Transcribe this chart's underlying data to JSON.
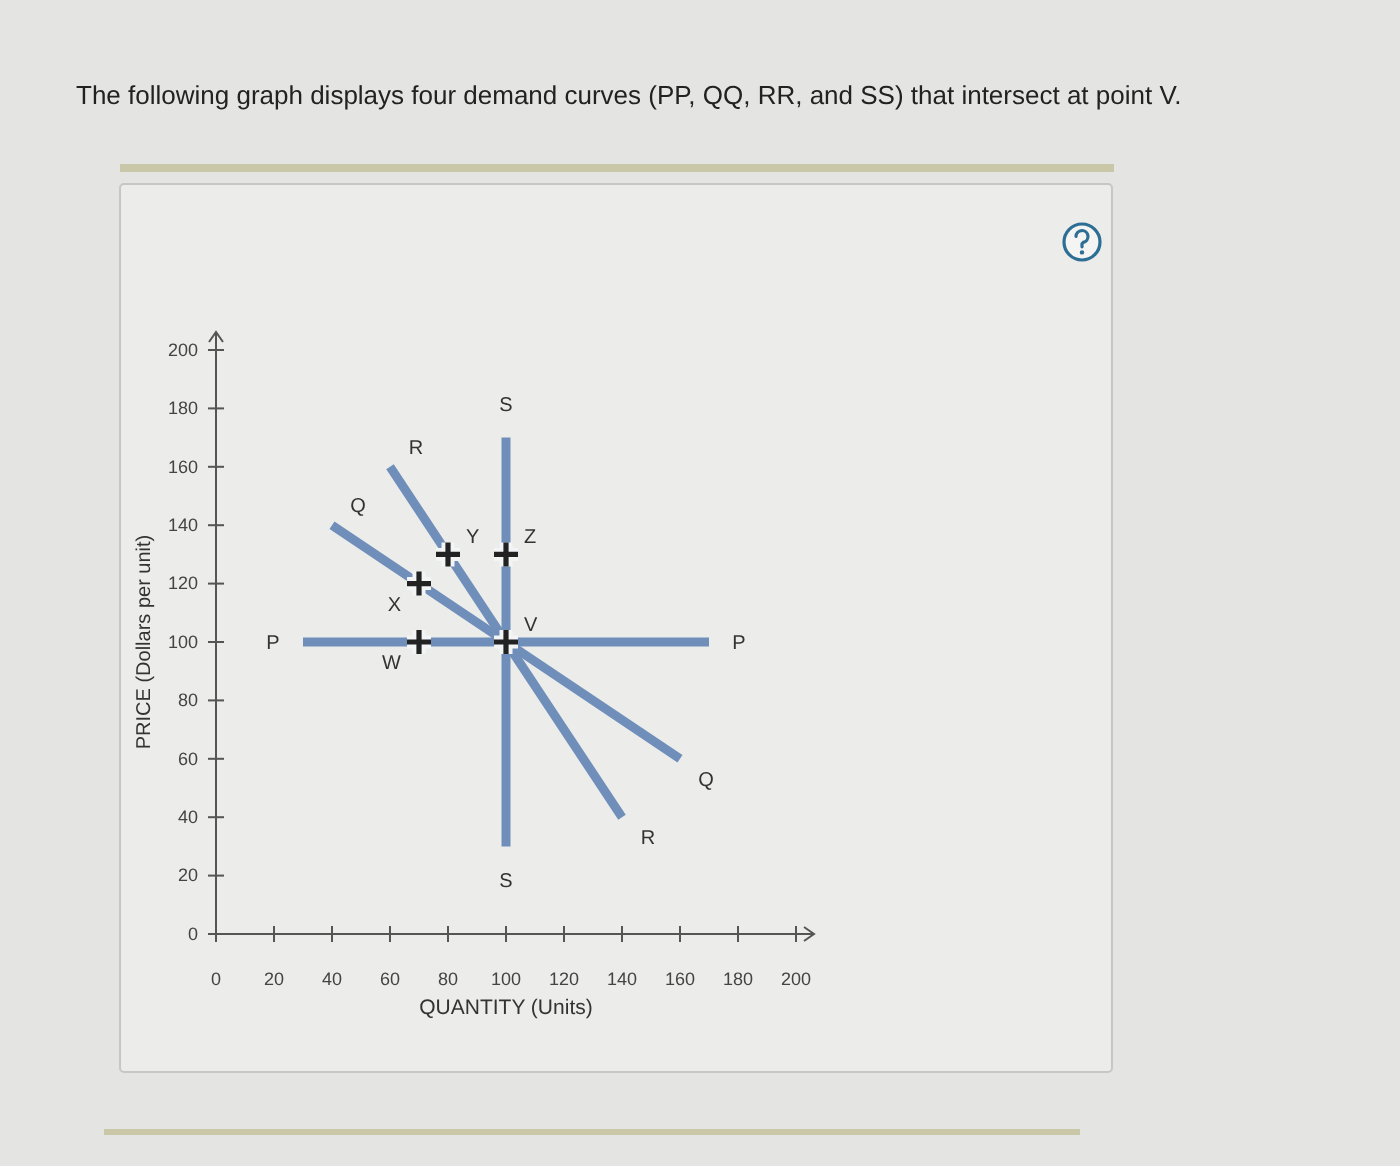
{
  "chart_data": {
    "type": "line",
    "title": "The following graph displays four demand curves (PP, QQ, RR, and SS) that intersect at point V.",
    "xlabel": "QUANTITY (Units)",
    "ylabel": "PRICE (Dollars per unit)",
    "xlim": [
      0,
      200
    ],
    "ylim": [
      0,
      200
    ],
    "xticks": [
      0,
      20,
      40,
      60,
      80,
      100,
      120,
      140,
      160,
      180,
      200
    ],
    "yticks": [
      0,
      20,
      40,
      60,
      80,
      100,
      120,
      140,
      160,
      180,
      200
    ],
    "line_style": "solid",
    "series": [
      {
        "name": "P",
        "color": "#6f8fba",
        "x": [
          30,
          170
        ],
        "values": [
          100,
          100
        ]
      },
      {
        "name": "Q",
        "color": "#6f8fba",
        "x": [
          40,
          160
        ],
        "values": [
          140,
          60
        ]
      },
      {
        "name": "R",
        "color": "#6f8fba",
        "x": [
          60,
          140
        ],
        "values": [
          160,
          40
        ]
      },
      {
        "name": "S",
        "color": "#6f8fba",
        "x": [
          100,
          100
        ],
        "values": [
          170,
          30
        ]
      },
      {
        "type": "scatter",
        "color": "#222222",
        "marker": "cross",
        "x": [
          70,
          70,
          80,
          100,
          100
        ],
        "values": [
          100,
          120,
          130,
          130,
          100
        ]
      }
    ],
    "annotations": [
      {
        "text": "W",
        "x": 70,
        "y": 100
      },
      {
        "text": "X",
        "x": 70,
        "y": 120
      },
      {
        "text": "Y",
        "x": 80,
        "y": 130
      },
      {
        "text": "Z",
        "x": 100,
        "y": 130
      },
      {
        "text": "V",
        "x": 100,
        "y": 100
      }
    ]
  }
}
